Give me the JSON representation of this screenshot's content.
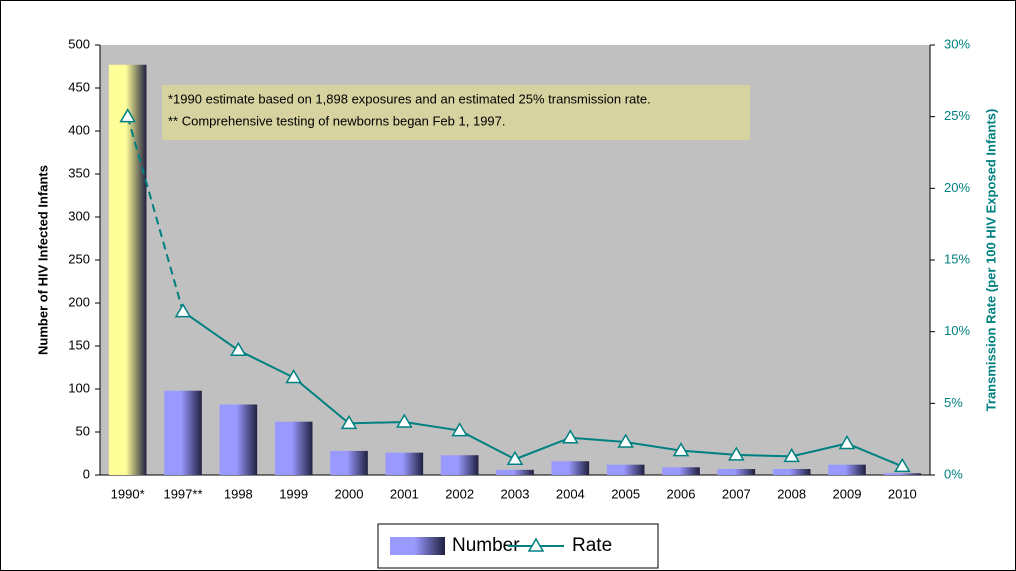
{
  "chart_data": {
    "type": "bar_line",
    "categories": [
      "1990*",
      "1997**",
      "1998",
      "1999",
      "2000",
      "2001",
      "2002",
      "2003",
      "2004",
      "2005",
      "2006",
      "2007",
      "2008",
      "2009",
      "2010"
    ],
    "series": [
      {
        "name": "Number",
        "type": "bar",
        "color": "#9999ff",
        "first_bar_color": "#ffff99",
        "values": [
          477,
          98,
          82,
          62,
          28,
          26,
          23,
          6,
          16,
          12,
          9,
          7,
          7,
          12,
          2
        ]
      },
      {
        "name": "Rate",
        "type": "line",
        "axis": "y2",
        "color": "#008080",
        "dash_first_segment": true,
        "values": [
          25.0,
          11.4,
          8.7,
          6.8,
          3.6,
          3.7,
          3.1,
          1.1,
          2.6,
          2.3,
          1.7,
          1.4,
          1.3,
          2.2,
          0.6
        ]
      }
    ],
    "ylabel": "Number of HIV Infected Infants",
    "y2label": "Transmission Rate (per 100 HIV Exposed Infants)",
    "ylim": [
      0,
      500
    ],
    "yticks": [
      0,
      50,
      100,
      150,
      200,
      250,
      300,
      350,
      400,
      450,
      500
    ],
    "y2lim": [
      0,
      30
    ],
    "y2ticks": [
      {
        "value": 0,
        "label": "0%"
      },
      {
        "value": 5,
        "label": "5%"
      },
      {
        "value": 10,
        "label": "10%"
      },
      {
        "value": 15,
        "label": "15%"
      },
      {
        "value": 20,
        "label": "20%"
      },
      {
        "value": 25,
        "label": "25%"
      },
      {
        "value": 30,
        "label": "30%"
      }
    ],
    "annotations": [
      "*1990 estimate based on 1,898 exposures and an estimated 25% transmission rate.",
      "** Comprehensive testing of newborns began Feb 1, 1997."
    ],
    "legend": "bottom"
  }
}
